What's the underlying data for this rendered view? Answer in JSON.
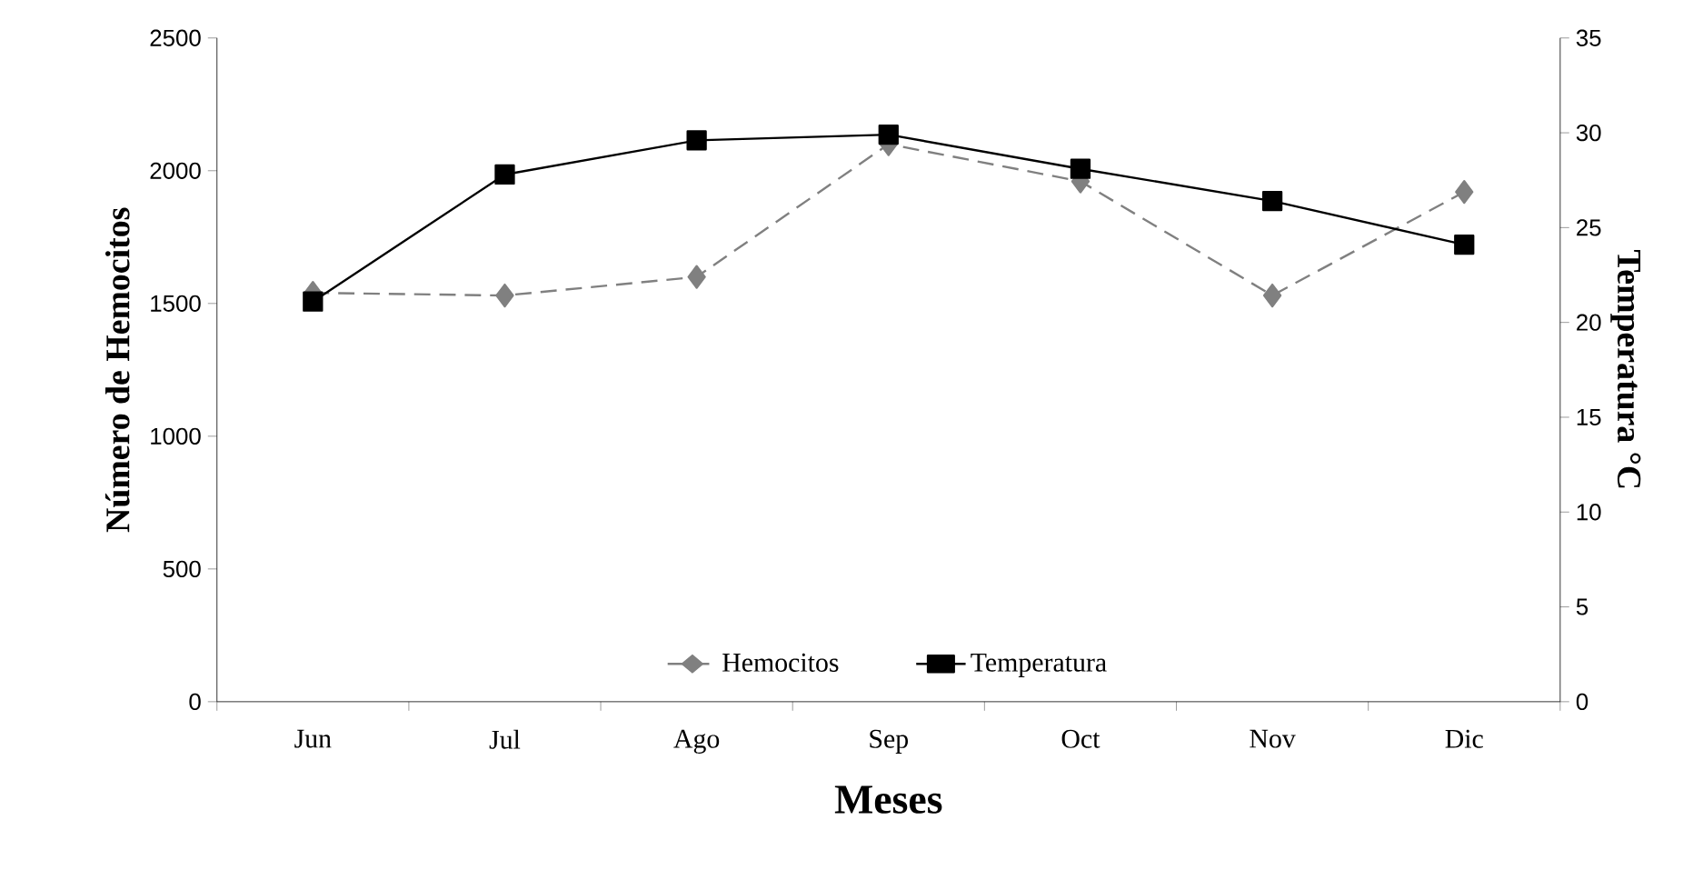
{
  "chart_data": {
    "type": "line",
    "xlabel": "Meses",
    "ylabel": "Número de Hemocitos",
    "y2label": "Temperatura °C",
    "categories": [
      "Jun",
      "Jul",
      "Ago",
      "Sep",
      "Oct",
      "Nov",
      "Dic"
    ],
    "series": [
      {
        "name": "Hemocitos",
        "color": "#808080",
        "values": [
          1540,
          1530,
          1600,
          2100,
          1960,
          1530,
          1920
        ],
        "marker": "diamond",
        "line_style": "dashed"
      },
      {
        "name": "Temperatura",
        "color": "#000000",
        "values": [
          21.1,
          27.8,
          29.6,
          29.9,
          28.1,
          26.4,
          24.1
        ],
        "marker": "square",
        "line_style": "solid",
        "axis": "y2"
      }
    ],
    "ylim": [
      0,
      2500
    ],
    "yticks": [
      0,
      500,
      1000,
      1500,
      2000,
      2500
    ],
    "y2lim": [
      0,
      35
    ],
    "y2ticks": [
      0,
      5,
      10,
      15,
      20,
      25,
      30,
      35
    ],
    "legend": "bottom",
    "grid": false
  }
}
